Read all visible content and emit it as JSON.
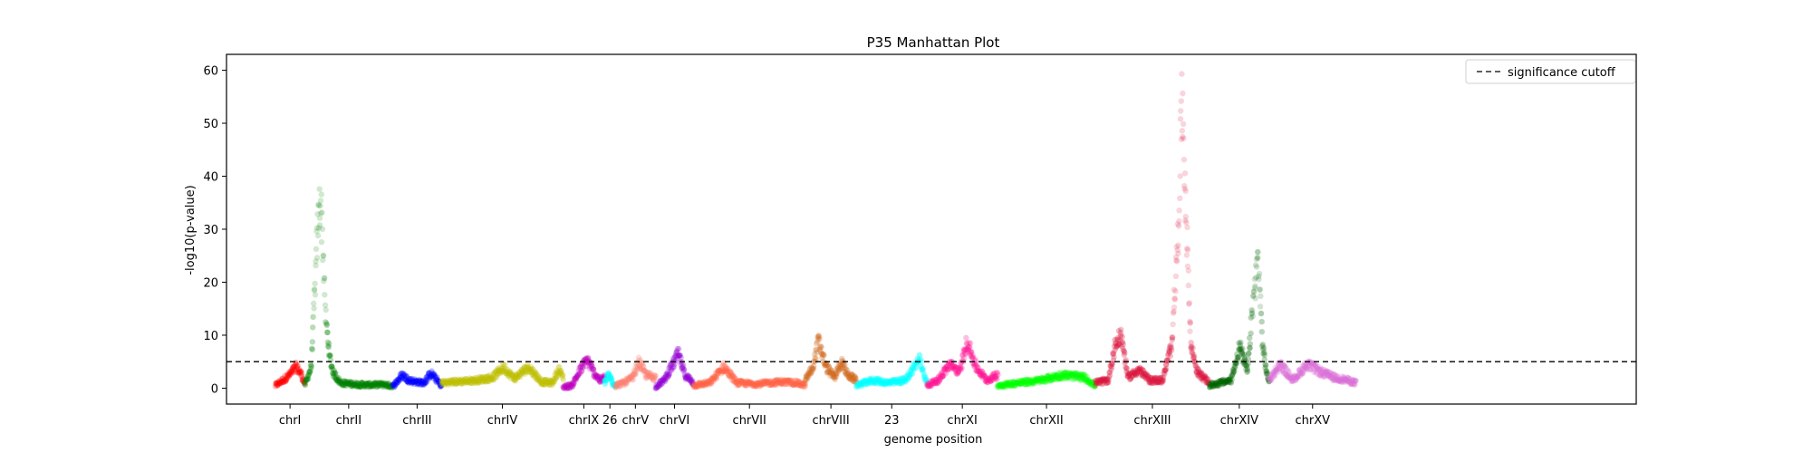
{
  "chart_data": {
    "type": "scatter",
    "title": "P35 Manhattan Plot",
    "xlabel": "genome position",
    "ylabel": "-log10(p-value)",
    "ylim": [
      -3,
      63
    ],
    "yticks": [
      0,
      10,
      20,
      30,
      40,
      50,
      60
    ],
    "xlim": [
      0,
      12.98
    ],
    "grid": false,
    "legend": {
      "placement": "top-right",
      "entries": [
        {
          "label": "significance cutoff",
          "style": "dashed",
          "color": "#000000"
        }
      ]
    },
    "threshold": 5,
    "chromosomes": [
      {
        "label": "chrI",
        "start": 0.45,
        "end": 0.72,
        "color": "#ff0000"
      },
      {
        "label": "chrII",
        "start": 0.72,
        "end": 1.53,
        "color": "#008000"
      },
      {
        "label": "chrIII",
        "start": 1.53,
        "end": 1.98,
        "color": "#0000ff"
      },
      {
        "label": "chrIV",
        "start": 1.98,
        "end": 3.1,
        "color": "#bfbf00"
      },
      {
        "label": "chrIX",
        "start": 3.1,
        "end": 3.48,
        "color": "#bf00bf"
      },
      {
        "label": "26",
        "start": 3.48,
        "end": 3.58,
        "color": "#00ffff"
      },
      {
        "label": "chrV",
        "start": 3.58,
        "end": 3.95,
        "color": "#fa8072"
      },
      {
        "label": "chrVI",
        "start": 3.95,
        "end": 4.3,
        "color": "#9400d3"
      },
      {
        "label": "chrVII",
        "start": 4.3,
        "end": 5.33,
        "color": "#ff6347"
      },
      {
        "label": "chrVIII",
        "start": 5.33,
        "end": 5.8,
        "color": "#d2691e"
      },
      {
        "label": "23",
        "start": 5.8,
        "end": 6.45,
        "color": "#00ffff"
      },
      {
        "label": "chrXI",
        "start": 6.45,
        "end": 7.1,
        "color": "#ff1493"
      },
      {
        "label": "chrXII",
        "start": 7.1,
        "end": 8.0,
        "color": "#00ff00"
      },
      {
        "label": "chrXIII",
        "start": 8.0,
        "end": 9.05,
        "color": "#dc143c"
      },
      {
        "label": "chrXIV",
        "start": 9.05,
        "end": 9.6,
        "color": "#006400"
      },
      {
        "label": "chrXV",
        "start": 9.6,
        "end": 10.4,
        "color": "#da70d6"
      }
    ],
    "signal": [
      {
        "chrom": "chrI",
        "points": [
          [
            0.45,
            0.5
          ],
          [
            0.52,
            1.5
          ],
          [
            0.58,
            2.5
          ],
          [
            0.64,
            4.0
          ],
          [
            0.68,
            3.0
          ],
          [
            0.72,
            1.0
          ]
        ]
      },
      {
        "chrom": "chrII",
        "points": [
          [
            0.72,
            0.5
          ],
          [
            0.78,
            4.0
          ],
          [
            0.84,
            30.0
          ],
          [
            0.865,
            36.5
          ],
          [
            0.89,
            26.0
          ],
          [
            0.91,
            14.0
          ],
          [
            0.95,
            6.0
          ],
          [
            0.98,
            3.0
          ],
          [
            1.05,
            1.0
          ],
          [
            1.15,
            0.8
          ],
          [
            1.3,
            0.6
          ],
          [
            1.45,
            0.7
          ],
          [
            1.53,
            0.4
          ]
        ]
      },
      {
        "chrom": "chrIII",
        "points": [
          [
            1.53,
            0.3
          ],
          [
            1.62,
            2.5
          ],
          [
            1.68,
            1.5
          ],
          [
            1.75,
            1.2
          ],
          [
            1.82,
            1.0
          ],
          [
            1.88,
            2.8
          ],
          [
            1.94,
            1.5
          ],
          [
            1.98,
            0.3
          ]
        ]
      },
      {
        "chrom": "chrIV",
        "points": [
          [
            1.98,
            1.0
          ],
          [
            2.1,
            1.2
          ],
          [
            2.3,
            1.5
          ],
          [
            2.45,
            2.0
          ],
          [
            2.55,
            4.0
          ],
          [
            2.65,
            1.8
          ],
          [
            2.78,
            4.0
          ],
          [
            2.9,
            1.2
          ],
          [
            3.0,
            1.0
          ],
          [
            3.06,
            3.5
          ],
          [
            3.1,
            2.0
          ]
        ]
      },
      {
        "chrom": "chrIX",
        "points": [
          [
            3.1,
            0.2
          ],
          [
            3.18,
            0.5
          ],
          [
            3.26,
            3.5
          ],
          [
            3.32,
            5.5
          ],
          [
            3.38,
            3.0
          ],
          [
            3.44,
            1.5
          ],
          [
            3.48,
            2.0
          ]
        ]
      },
      {
        "chrom": "26",
        "points": [
          [
            3.48,
            1.0
          ],
          [
            3.52,
            2.5
          ],
          [
            3.56,
            1.0
          ],
          [
            3.58,
            0.5
          ]
        ]
      },
      {
        "chrom": "chrV",
        "points": [
          [
            3.58,
            0.5
          ],
          [
            3.66,
            1.0
          ],
          [
            3.74,
            2.0
          ],
          [
            3.8,
            5.0
          ],
          [
            3.86,
            2.5
          ],
          [
            3.95,
            2.0
          ]
        ]
      },
      {
        "chrom": "chrVI",
        "points": [
          [
            3.95,
            0.3
          ],
          [
            4.03,
            1.5
          ],
          [
            4.11,
            4.5
          ],
          [
            4.16,
            6.5
          ],
          [
            4.22,
            2.5
          ],
          [
            4.3,
            1.0
          ]
        ]
      },
      {
        "chrom": "chrVII",
        "points": [
          [
            4.3,
            0.5
          ],
          [
            4.45,
            1.0
          ],
          [
            4.58,
            4.0
          ],
          [
            4.7,
            1.0
          ],
          [
            4.9,
            0.8
          ],
          [
            5.1,
            1.2
          ],
          [
            5.25,
            1.0
          ],
          [
            5.33,
            0.5
          ]
        ]
      },
      {
        "chrom": "chrVIII",
        "points": [
          [
            5.33,
            1.5
          ],
          [
            5.4,
            4.0
          ],
          [
            5.45,
            9.0
          ],
          [
            5.52,
            4.0
          ],
          [
            5.6,
            2.0
          ],
          [
            5.66,
            5.0
          ],
          [
            5.72,
            2.5
          ],
          [
            5.8,
            1.5
          ]
        ]
      },
      {
        "chrom": "23",
        "points": [
          [
            5.8,
            0.5
          ],
          [
            5.95,
            1.5
          ],
          [
            6.1,
            1.0
          ],
          [
            6.25,
            1.5
          ],
          [
            6.38,
            5.5
          ],
          [
            6.45,
            1.0
          ]
        ]
      },
      {
        "chrom": "chrXI",
        "points": [
          [
            6.45,
            0.5
          ],
          [
            6.55,
            1.5
          ],
          [
            6.66,
            4.5
          ],
          [
            6.75,
            3.0
          ],
          [
            6.82,
            9.0
          ],
          [
            6.9,
            4.0
          ],
          [
            7.0,
            1.5
          ],
          [
            7.1,
            2.5
          ]
        ]
      },
      {
        "chrom": "chrXII",
        "points": [
          [
            7.1,
            0.5
          ],
          [
            7.3,
            1.0
          ],
          [
            7.5,
            1.5
          ],
          [
            7.7,
            2.5
          ],
          [
            7.9,
            2.0
          ],
          [
            8.0,
            0.5
          ]
        ]
      },
      {
        "chrom": "chrXIII",
        "points": [
          [
            8.0,
            1.0
          ],
          [
            8.12,
            1.5
          ],
          [
            8.18,
            8.0
          ],
          [
            8.24,
            10.0
          ],
          [
            8.3,
            2.0
          ],
          [
            8.4,
            3.5
          ],
          [
            8.5,
            1.5
          ],
          [
            8.62,
            1.5
          ],
          [
            8.7,
            8.0
          ],
          [
            8.76,
            28.0
          ],
          [
            8.8,
            55.0
          ],
          [
            8.84,
            30.0
          ],
          [
            8.88,
            8.0
          ],
          [
            8.94,
            3.0
          ],
          [
            9.05,
            1.0
          ]
        ]
      },
      {
        "chrom": "chrXIV",
        "points": [
          [
            9.05,
            0.5
          ],
          [
            9.15,
            1.0
          ],
          [
            9.25,
            1.5
          ],
          [
            9.33,
            8.0
          ],
          [
            9.4,
            3.0
          ],
          [
            9.45,
            16.0
          ],
          [
            9.5,
            25.0
          ],
          [
            9.54,
            8.0
          ],
          [
            9.58,
            2.5
          ],
          [
            9.6,
            1.5
          ]
        ]
      },
      {
        "chrom": "chrXV",
        "points": [
          [
            9.6,
            1.5
          ],
          [
            9.7,
            4.5
          ],
          [
            9.82,
            1.5
          ],
          [
            9.95,
            4.5
          ],
          [
            10.08,
            3.0
          ],
          [
            10.2,
            2.0
          ],
          [
            10.32,
            1.5
          ],
          [
            10.4,
            1.0
          ]
        ]
      }
    ]
  }
}
